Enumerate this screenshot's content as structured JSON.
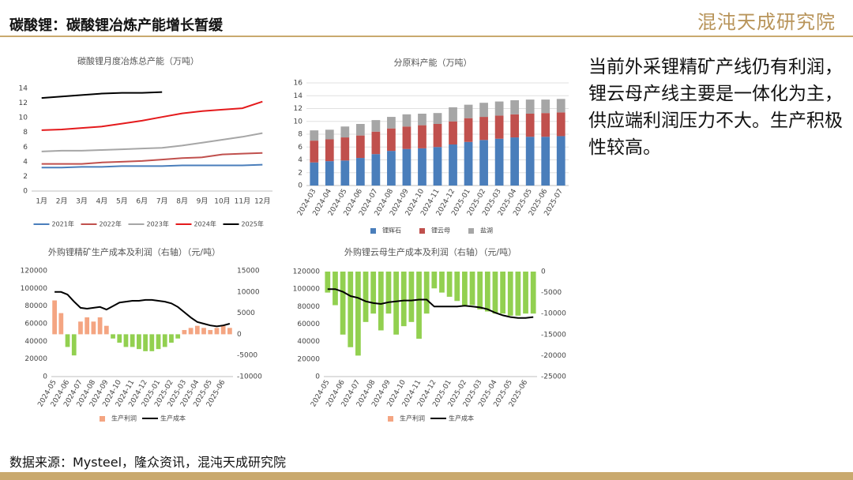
{
  "header": {
    "title": "碳酸锂：碳酸锂冶炼产能增长暂缓",
    "logo": "混沌天成研究院"
  },
  "body_text": "当前外采锂精矿产线仍有利润，锂云母产线主要是一体化为主，供应端利润压力不大。生产积极性较高。",
  "source": "数据来源：Mysteel，隆众资讯，混沌天成研究院",
  "chart_data": [
    {
      "type": "line",
      "title": "碳酸锂月度冶炼总产能（万吨）",
      "categories": [
        "1月",
        "2月",
        "3月",
        "4月",
        "5月",
        "6月",
        "7月",
        "8月",
        "9月",
        "10月",
        "11月",
        "12月"
      ],
      "series": [
        {
          "name": "2021年",
          "color": "#4a7ebb",
          "values": [
            3.2,
            3.2,
            3.3,
            3.3,
            3.4,
            3.4,
            3.4,
            3.5,
            3.5,
            3.5,
            3.5,
            3.6
          ]
        },
        {
          "name": "2022年",
          "color": "#c0504d",
          "values": [
            3.7,
            3.7,
            3.7,
            3.9,
            4.0,
            4.1,
            4.3,
            4.5,
            4.6,
            5.0,
            5.1,
            5.2
          ]
        },
        {
          "name": "2023年",
          "color": "#a6a6a6",
          "values": [
            5.4,
            5.5,
            5.5,
            5.6,
            5.7,
            5.8,
            5.9,
            6.2,
            6.6,
            7.0,
            7.4,
            7.9
          ]
        },
        {
          "name": "2024年",
          "color": "#e41a1c",
          "values": [
            8.3,
            8.4,
            8.6,
            8.8,
            9.2,
            9.6,
            10.1,
            10.6,
            10.9,
            11.1,
            11.3,
            12.2
          ]
        },
        {
          "name": "2025年",
          "color": "#000000",
          "values": [
            12.7,
            12.9,
            13.1,
            13.3,
            13.4,
            13.4,
            13.5,
            null,
            null,
            null,
            null,
            null
          ]
        }
      ],
      "ylim": [
        0,
        14
      ],
      "yticks": [
        0,
        2,
        4,
        6,
        8,
        10,
        12,
        14
      ],
      "grid": false
    },
    {
      "type": "bar",
      "stacked": true,
      "title": "分原料产能（万吨）",
      "categories": [
        "2024-03",
        "2024-04",
        "2024-05",
        "2024-06",
        "2024-07",
        "2024-08",
        "2024-09",
        "2024-10",
        "2024-11",
        "2024-12",
        "2025-01",
        "2025-02",
        "2025-03",
        "2025-04",
        "2025-05",
        "2025-06",
        "2025-07"
      ],
      "series": [
        {
          "name": "锂辉石",
          "color": "#4a7ebb",
          "values": [
            3.6,
            3.8,
            3.9,
            4.3,
            4.9,
            5.4,
            5.7,
            5.8,
            6.0,
            6.4,
            6.8,
            7.1,
            7.3,
            7.5,
            7.6,
            7.6,
            7.7
          ]
        },
        {
          "name": "锂云母",
          "color": "#c0504d",
          "values": [
            3.4,
            3.4,
            3.6,
            3.5,
            3.5,
            3.5,
            3.5,
            3.6,
            3.6,
            3.6,
            3.7,
            3.6,
            3.6,
            3.6,
            3.6,
            3.7,
            3.7
          ]
        },
        {
          "name": "盐湖",
          "color": "#a6a6a6",
          "values": [
            1.6,
            1.5,
            1.7,
            1.8,
            1.8,
            1.8,
            1.9,
            1.8,
            1.7,
            2.2,
            2.1,
            2.2,
            2.2,
            2.2,
            2.2,
            2.1,
            2.1
          ]
        }
      ],
      "ylim": [
        0,
        16
      ],
      "yticks": [
        0,
        2,
        4,
        6,
        8,
        10,
        12,
        14,
        16
      ],
      "grid": true
    },
    {
      "type": "combo",
      "title": "外购锂精矿生产成本及利润（右轴）（元/吨）",
      "categories": [
        "2024-05",
        null,
        "2024-06",
        null,
        "2024-07",
        null,
        "2024-08",
        null,
        "2024-09",
        null,
        "2024-10",
        null,
        "2024-11",
        null,
        "2024-12",
        null,
        "2025-01",
        null,
        "2025-02",
        null,
        "2025-03",
        null,
        "2025-04",
        null,
        "2025-05",
        null,
        "2025-06",
        null
      ],
      "series": [
        {
          "name": "生产利润",
          "type": "bar",
          "axis": "y2",
          "color": "#f4a582",
          "negative_color": "#92d050",
          "values": [
            8000,
            5000,
            -3000,
            -5000,
            3000,
            4000,
            3000,
            4000,
            2000,
            -1000,
            -2000,
            -3000,
            -3000,
            -3500,
            -4000,
            -4000,
            -3500,
            -3000,
            -2000,
            -1000,
            1000,
            1500,
            2000,
            1500,
            1000,
            1500,
            2000,
            1500
          ]
        },
        {
          "name": "生产成本",
          "type": "line",
          "color": "#000000",
          "values": [
            96000,
            96000,
            93000,
            85000,
            78000,
            77000,
            78000,
            79000,
            76000,
            80000,
            84000,
            85000,
            86000,
            86000,
            87000,
            87000,
            86000,
            85000,
            83000,
            79000,
            73000,
            67000,
            62000,
            60000,
            58000,
            57000,
            58000,
            60000
          ]
        }
      ],
      "ylim": [
        0,
        120000
      ],
      "yticks": [
        0,
        20000,
        40000,
        60000,
        80000,
        100000,
        120000
      ],
      "y2lim": [
        -10000,
        15000
      ],
      "y2ticks": [
        -10000,
        -5000,
        0,
        5000,
        10000,
        15000
      ],
      "grid": false
    },
    {
      "type": "combo",
      "title": "外购锂云母生产成本及利润（右轴）（元/吨）",
      "categories": [
        "2024-05",
        null,
        "2024-06",
        null,
        "2024-07",
        null,
        "2024-08",
        null,
        "2024-09",
        null,
        "2024-10",
        null,
        "2024-11",
        null,
        "2024-12",
        null,
        "2025-01",
        null,
        "2025-02",
        null,
        "2025-03",
        null,
        "2025-04",
        null,
        "2025-05",
        null,
        "2025-06",
        null
      ],
      "series": [
        {
          "name": "生产利润",
          "type": "bar",
          "axis": "y2",
          "color": "#f4a582",
          "negative_color": "#92d050",
          "values": [
            -5000,
            -8000,
            -15000,
            -18000,
            -20000,
            -12000,
            -10000,
            -14000,
            -10000,
            -15000,
            -13000,
            -12000,
            -16000,
            -10000,
            -4000,
            -5000,
            -6000,
            -7000,
            -8000,
            -8000,
            -9000,
            -9500,
            -10000,
            -10000,
            -10500,
            -10500,
            -10000,
            -10000
          ]
        },
        {
          "name": "生产成本",
          "type": "line",
          "color": "#000000",
          "values": [
            100000,
            100000,
            97000,
            92000,
            90000,
            86000,
            84000,
            83000,
            85000,
            86000,
            87000,
            87000,
            88000,
            88000,
            80000,
            80000,
            80000,
            80000,
            81000,
            80000,
            79000,
            77000,
            73000,
            70000,
            68000,
            67000,
            67000,
            68000
          ]
        }
      ],
      "ylim": [
        0,
        120000
      ],
      "yticks": [
        0,
        20000,
        40000,
        60000,
        80000,
        100000,
        120000
      ],
      "y2lim": [
        -25000,
        0
      ],
      "y2ticks": [
        -25000,
        -20000,
        -15000,
        -10000,
        -5000,
        0
      ],
      "grid": false
    }
  ]
}
